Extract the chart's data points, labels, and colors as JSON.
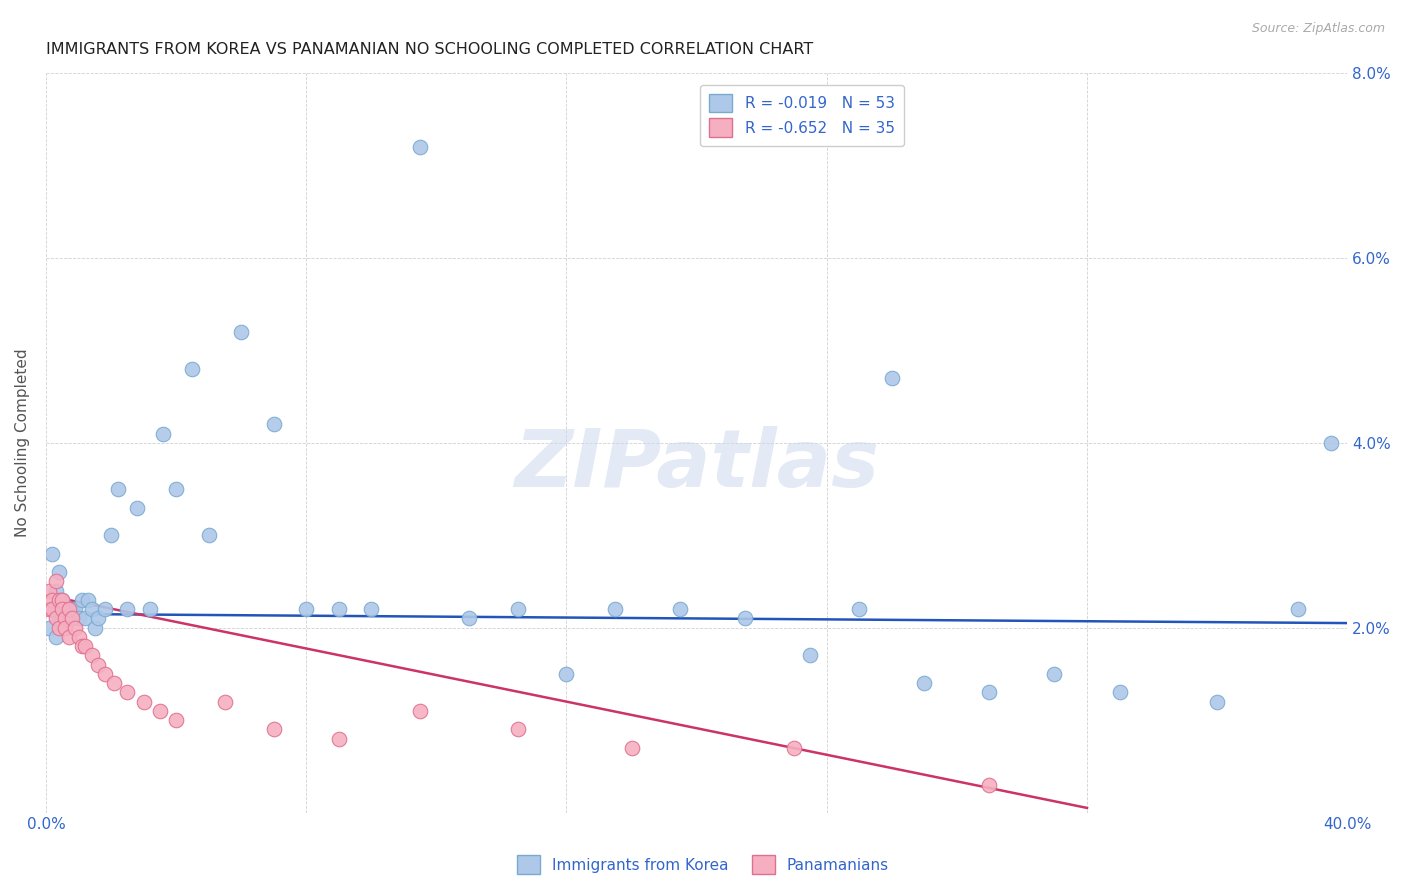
{
  "title": "IMMIGRANTS FROM KOREA VS PANAMANIAN NO SCHOOLING COMPLETED CORRELATION CHART",
  "source": "Source: ZipAtlas.com",
  "ylabel": "No Schooling Completed",
  "xlim": [
    0.0,
    0.4
  ],
  "ylim": [
    0.0,
    0.08
  ],
  "xtick_pos": [
    0.0,
    0.08,
    0.16,
    0.24,
    0.32,
    0.4
  ],
  "xtick_labels": [
    "0.0%",
    "",
    "",
    "",
    "",
    "40.0%"
  ],
  "ytick_pos": [
    0.0,
    0.02,
    0.04,
    0.06,
    0.08
  ],
  "ytick_labels": [
    "",
    "2.0%",
    "4.0%",
    "6.0%",
    "8.0%"
  ],
  "korea_color": "#adc8e8",
  "panama_color": "#f5afc0",
  "korea_edge": "#7aaad0",
  "panama_edge": "#e07090",
  "trend_korea_color": "#2255bb",
  "trend_panama_color": "#cc3366",
  "legend_korea_label": "R = -0.019   N = 53",
  "legend_panama_label": "R = -0.652   N = 35",
  "legend_bottom_korea": "Immigrants from Korea",
  "legend_bottom_panama": "Panamanians",
  "korea_x": [
    0.001,
    0.002,
    0.002,
    0.003,
    0.003,
    0.004,
    0.004,
    0.005,
    0.005,
    0.006,
    0.006,
    0.007,
    0.008,
    0.009,
    0.01,
    0.011,
    0.012,
    0.013,
    0.014,
    0.015,
    0.016,
    0.018,
    0.02,
    0.022,
    0.025,
    0.028,
    0.032,
    0.036,
    0.04,
    0.045,
    0.05,
    0.06,
    0.07,
    0.08,
    0.09,
    0.1,
    0.115,
    0.13,
    0.145,
    0.16,
    0.175,
    0.195,
    0.215,
    0.235,
    0.25,
    0.27,
    0.29,
    0.31,
    0.33,
    0.36,
    0.385,
    0.395,
    0.26
  ],
  "korea_y": [
    0.02,
    0.028,
    0.022,
    0.019,
    0.024,
    0.021,
    0.026,
    0.021,
    0.023,
    0.022,
    0.022,
    0.021,
    0.022,
    0.022,
    0.021,
    0.023,
    0.021,
    0.023,
    0.022,
    0.02,
    0.021,
    0.022,
    0.03,
    0.035,
    0.022,
    0.033,
    0.022,
    0.041,
    0.035,
    0.048,
    0.03,
    0.052,
    0.042,
    0.022,
    0.022,
    0.022,
    0.072,
    0.021,
    0.022,
    0.015,
    0.022,
    0.022,
    0.021,
    0.017,
    0.022,
    0.014,
    0.013,
    0.015,
    0.013,
    0.012,
    0.022,
    0.04,
    0.047
  ],
  "panama_x": [
    0.001,
    0.001,
    0.002,
    0.002,
    0.003,
    0.003,
    0.004,
    0.004,
    0.005,
    0.005,
    0.006,
    0.006,
    0.007,
    0.007,
    0.008,
    0.009,
    0.01,
    0.011,
    0.012,
    0.014,
    0.016,
    0.018,
    0.021,
    0.025,
    0.03,
    0.035,
    0.04,
    0.055,
    0.07,
    0.09,
    0.115,
    0.145,
    0.18,
    0.23,
    0.29
  ],
  "panama_y": [
    0.024,
    0.022,
    0.023,
    0.022,
    0.025,
    0.021,
    0.023,
    0.02,
    0.023,
    0.022,
    0.021,
    0.02,
    0.022,
    0.019,
    0.021,
    0.02,
    0.019,
    0.018,
    0.018,
    0.017,
    0.016,
    0.015,
    0.014,
    0.013,
    0.012,
    0.011,
    0.01,
    0.012,
    0.009,
    0.008,
    0.011,
    0.009,
    0.007,
    0.007,
    0.003
  ],
  "korea_trend_x": [
    0.0,
    0.4
  ],
  "korea_trend_y": [
    0.0215,
    0.0205
  ],
  "panama_trend_x": [
    0.0,
    0.32
  ],
  "panama_trend_y": [
    0.0235,
    0.0005
  ]
}
